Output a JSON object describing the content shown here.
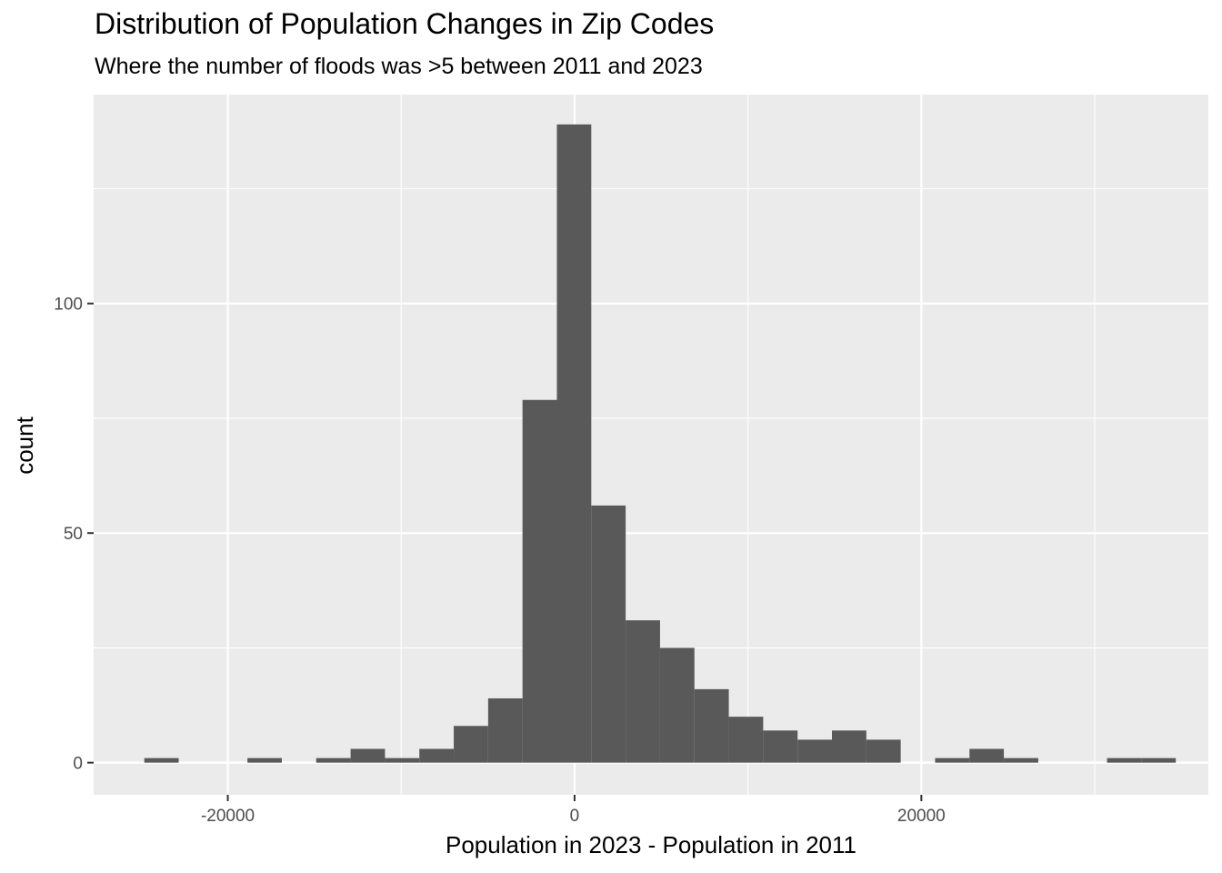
{
  "chart_data": {
    "type": "bar",
    "title": "Distribution of Population Changes in Zip Codes",
    "subtitle": "Where the number of floods was >5 between 2011 and 2023",
    "xlabel": "Population in 2023 - Population in 2011",
    "ylabel": "count",
    "xlim": [
      -27737,
      36553
    ],
    "ylim": [
      -7,
      145.5
    ],
    "x_ticks": [
      -20000,
      0,
      20000
    ],
    "x_tick_labels": [
      "-20000",
      "0",
      "20000"
    ],
    "y_ticks": [
      0,
      50,
      100
    ],
    "y_tick_labels": [
      "0",
      "50",
      "100"
    ],
    "bin_width": 1983,
    "bins": [
      {
        "x0": -24816,
        "x1": -22833,
        "count": 1
      },
      {
        "x0": -18867,
        "x1": -16884,
        "count": 1
      },
      {
        "x0": -14901,
        "x1": -12918,
        "count": 1
      },
      {
        "x0": -12918,
        "x1": -10935,
        "count": 3
      },
      {
        "x0": -10935,
        "x1": -8952,
        "count": 1
      },
      {
        "x0": -8952,
        "x1": -6969,
        "count": 3
      },
      {
        "x0": -6969,
        "x1": -4986,
        "count": 8
      },
      {
        "x0": -4986,
        "x1": -3003,
        "count": 14
      },
      {
        "x0": -3003,
        "x1": -1020,
        "count": 79
      },
      {
        "x0": -1020,
        "x1": 963,
        "count": 139
      },
      {
        "x0": 963,
        "x1": 2946,
        "count": 56
      },
      {
        "x0": 2946,
        "x1": 4929,
        "count": 31
      },
      {
        "x0": 4929,
        "x1": 6912,
        "count": 25
      },
      {
        "x0": 6912,
        "x1": 8895,
        "count": 16
      },
      {
        "x0": 8895,
        "x1": 10878,
        "count": 10
      },
      {
        "x0": 10878,
        "x1": 12861,
        "count": 7
      },
      {
        "x0": 12861,
        "x1": 14844,
        "count": 5
      },
      {
        "x0": 14844,
        "x1": 16827,
        "count": 7
      },
      {
        "x0": 16827,
        "x1": 18810,
        "count": 5
      },
      {
        "x0": 20793,
        "x1": 22776,
        "count": 1
      },
      {
        "x0": 22776,
        "x1": 24759,
        "count": 3
      },
      {
        "x0": 24759,
        "x1": 26742,
        "count": 1
      },
      {
        "x0": 30708,
        "x1": 32691,
        "count": 1
      },
      {
        "x0": 32691,
        "x1": 34674,
        "count": 1
      }
    ],
    "grid": true,
    "colors": {
      "panel_background": "#ebebeb",
      "grid": "#ffffff",
      "bar_fill": "#595959",
      "tick_text": "#4d4d4d",
      "tick_mark": "#333333"
    }
  }
}
